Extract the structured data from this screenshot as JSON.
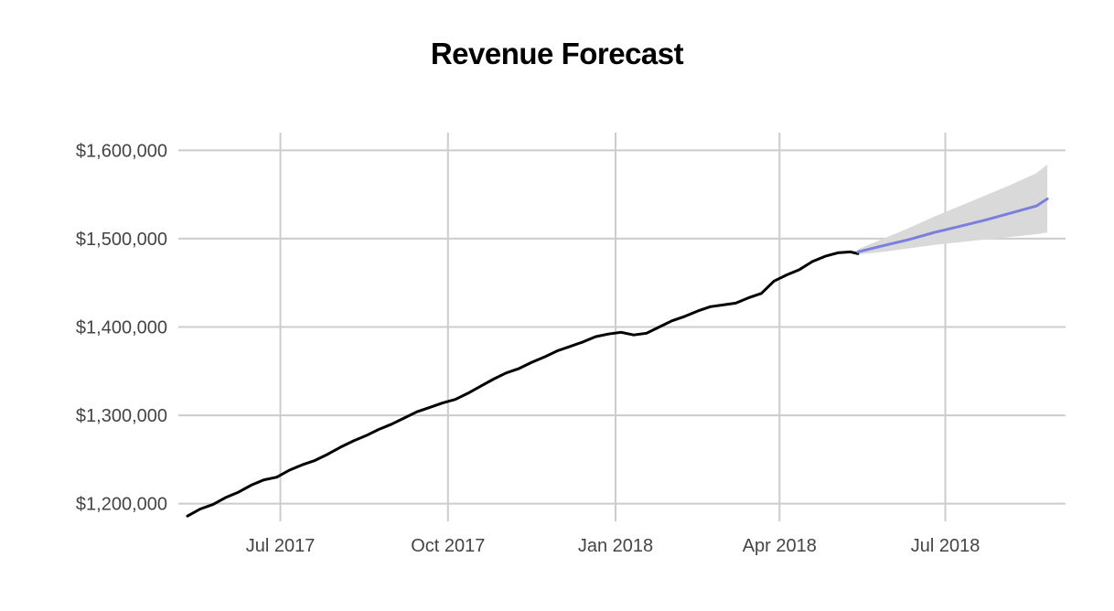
{
  "chart_data": {
    "type": "line",
    "title": "Revenue Forecast",
    "xlabel": "",
    "ylabel": "",
    "x_ticks": [
      "Jul 2017",
      "Oct 2017",
      "Jan 2018",
      "Apr 2018",
      "Jul 2018"
    ],
    "x_tick_dates": [
      "2017-07-01",
      "2017-10-01",
      "2018-01-01",
      "2018-04-01",
      "2018-07-01"
    ],
    "y_ticks": [
      1200000,
      1300000,
      1400000,
      1500000,
      1600000
    ],
    "y_tick_labels": [
      "$1,200,000",
      "$1,300,000",
      "$1,400,000",
      "$1,500,000",
      "$1,600,000"
    ],
    "xlim": [
      "2017-05-06",
      "2018-09-05"
    ],
    "ylim": [
      1180000,
      1620000
    ],
    "grid": true,
    "colors": {
      "actual": "#000000",
      "forecast": "#7b7fdc",
      "band": "#d9d9d9",
      "grid": "#cccccc"
    },
    "series": [
      {
        "role": "actual",
        "x": [
          "2017-05-11",
          "2017-05-18",
          "2017-05-25",
          "2017-06-01",
          "2017-06-08",
          "2017-06-15",
          "2017-06-22",
          "2017-06-29",
          "2017-07-06",
          "2017-07-13",
          "2017-07-20",
          "2017-07-27",
          "2017-08-03",
          "2017-08-10",
          "2017-08-17",
          "2017-08-24",
          "2017-08-31",
          "2017-09-07",
          "2017-09-14",
          "2017-09-21",
          "2017-09-28",
          "2017-10-05",
          "2017-10-12",
          "2017-10-19",
          "2017-10-26",
          "2017-11-02",
          "2017-11-09",
          "2017-11-16",
          "2017-11-23",
          "2017-11-30",
          "2017-12-07",
          "2017-12-14",
          "2017-12-21",
          "2017-12-28",
          "2018-01-04",
          "2018-01-11",
          "2018-01-18",
          "2018-01-25",
          "2018-02-01",
          "2018-02-08",
          "2018-02-15",
          "2018-02-22",
          "2018-03-01",
          "2018-03-08",
          "2018-03-15",
          "2018-03-22",
          "2018-03-29",
          "2018-04-05",
          "2018-04-12",
          "2018-04-19",
          "2018-04-26",
          "2018-05-03",
          "2018-05-10",
          "2018-05-14"
        ],
        "values": [
          1186000,
          1194000,
          1199000,
          1207000,
          1213000,
          1221000,
          1227000,
          1230000,
          1238000,
          1244000,
          1249000,
          1256000,
          1264000,
          1271000,
          1277000,
          1284000,
          1290000,
          1297000,
          1304000,
          1309000,
          1314000,
          1318000,
          1325000,
          1333000,
          1341000,
          1348000,
          1353000,
          1360000,
          1366000,
          1373000,
          1378000,
          1383000,
          1389000,
          1392000,
          1394000,
          1391000,
          1393000,
          1400000,
          1407000,
          1412000,
          1418000,
          1423000,
          1425000,
          1427000,
          1433000,
          1438000,
          1452000,
          1459000,
          1465000,
          1474000,
          1480000,
          1484000,
          1485000,
          1483000
        ]
      },
      {
        "role": "forecast",
        "x": [
          "2018-05-14",
          "2018-05-28",
          "2018-06-11",
          "2018-06-25",
          "2018-07-09",
          "2018-07-23",
          "2018-08-06",
          "2018-08-20",
          "2018-08-26"
        ],
        "values": [
          1485000,
          1492000,
          1499000,
          1507000,
          1514000,
          1521000,
          1529000,
          1537000,
          1545000
        ],
        "lower": [
          1482000,
          1485000,
          1489000,
          1493000,
          1496000,
          1499000,
          1502000,
          1505000,
          1507000
        ],
        "upper": [
          1488000,
          1500000,
          1512000,
          1525000,
          1537000,
          1549000,
          1561000,
          1574000,
          1584000
        ]
      }
    ]
  }
}
